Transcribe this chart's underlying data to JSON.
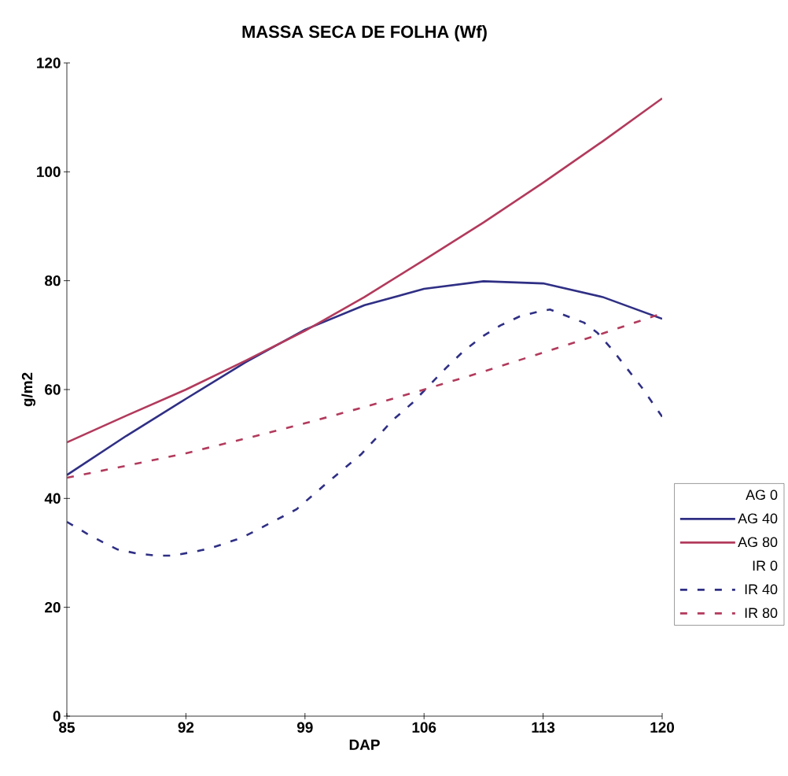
{
  "chart_data": {
    "type": "line",
    "title": "MASSA SECA DE FOLHA (Wf)",
    "xlabel": "DAP",
    "ylabel": "g/m2",
    "xlim": [
      85,
      120
    ],
    "xticks": [
      85,
      92,
      99,
      106,
      113,
      120
    ],
    "ylim": [
      0,
      120
    ],
    "yticks": [
      0,
      20,
      40,
      60,
      80,
      100,
      120
    ],
    "grid": false,
    "legend": "right",
    "series": [
      {
        "name": "AG 0"
      },
      {
        "name": "AG 40",
        "color": "#2f2f85",
        "line_style": "solid",
        "x": [
          85,
          88.5,
          92,
          95.5,
          99,
          102.5,
          106,
          109.5,
          113,
          116.5,
          120
        ],
        "values": [
          44.3,
          51.5,
          58.3,
          65,
          71,
          75.5,
          78.5,
          79.9,
          79.5,
          77,
          73
        ]
      },
      {
        "name": "AG 80",
        "color": "#b23a5c",
        "line_style": "solid",
        "x": [
          85,
          88.5,
          92,
          95.5,
          99,
          102.5,
          106,
          109.5,
          113,
          116.5,
          120
        ],
        "values": [
          50.3,
          55.2,
          60,
          65.3,
          70.8,
          77,
          83.8,
          90.7,
          98,
          105.6,
          113.5
        ]
      },
      {
        "name": "IR 0"
      },
      {
        "name": "IR 40",
        "color": "#2f2f85",
        "line_style": "dashed",
        "x": [
          85,
          86.2,
          87.2,
          88,
          89.1,
          90.2,
          91.2,
          92.3,
          93.4,
          95.3,
          97.1,
          98.5,
          100.2,
          102.3,
          104.2,
          105.3,
          107.3,
          108.3,
          109.4,
          110.5,
          111.6,
          112.8,
          113.4,
          115.4,
          116.2,
          117.1,
          118,
          118.8,
          120
        ],
        "values": [
          35.7,
          33.5,
          31.8,
          30.6,
          29.9,
          29.5,
          29.5,
          30.1,
          30.8,
          32.8,
          35.7,
          38,
          42.6,
          48.1,
          54.5,
          57.5,
          64,
          67,
          69.7,
          71.8,
          73.4,
          74.4,
          74.7,
          72.3,
          70.4,
          67.2,
          63.6,
          60.4,
          55
        ]
      },
      {
        "name": "IR 80",
        "color": "#b23a5c",
        "line_style": "dashed",
        "x": [
          85,
          88.5,
          92,
          95.5,
          99,
          102.5,
          106,
          109.5,
          113,
          116.5,
          120
        ],
        "values": [
          43.8,
          46,
          48.3,
          51,
          53.8,
          56.8,
          60,
          63.3,
          66.8,
          70.3,
          74
        ]
      }
    ]
  }
}
